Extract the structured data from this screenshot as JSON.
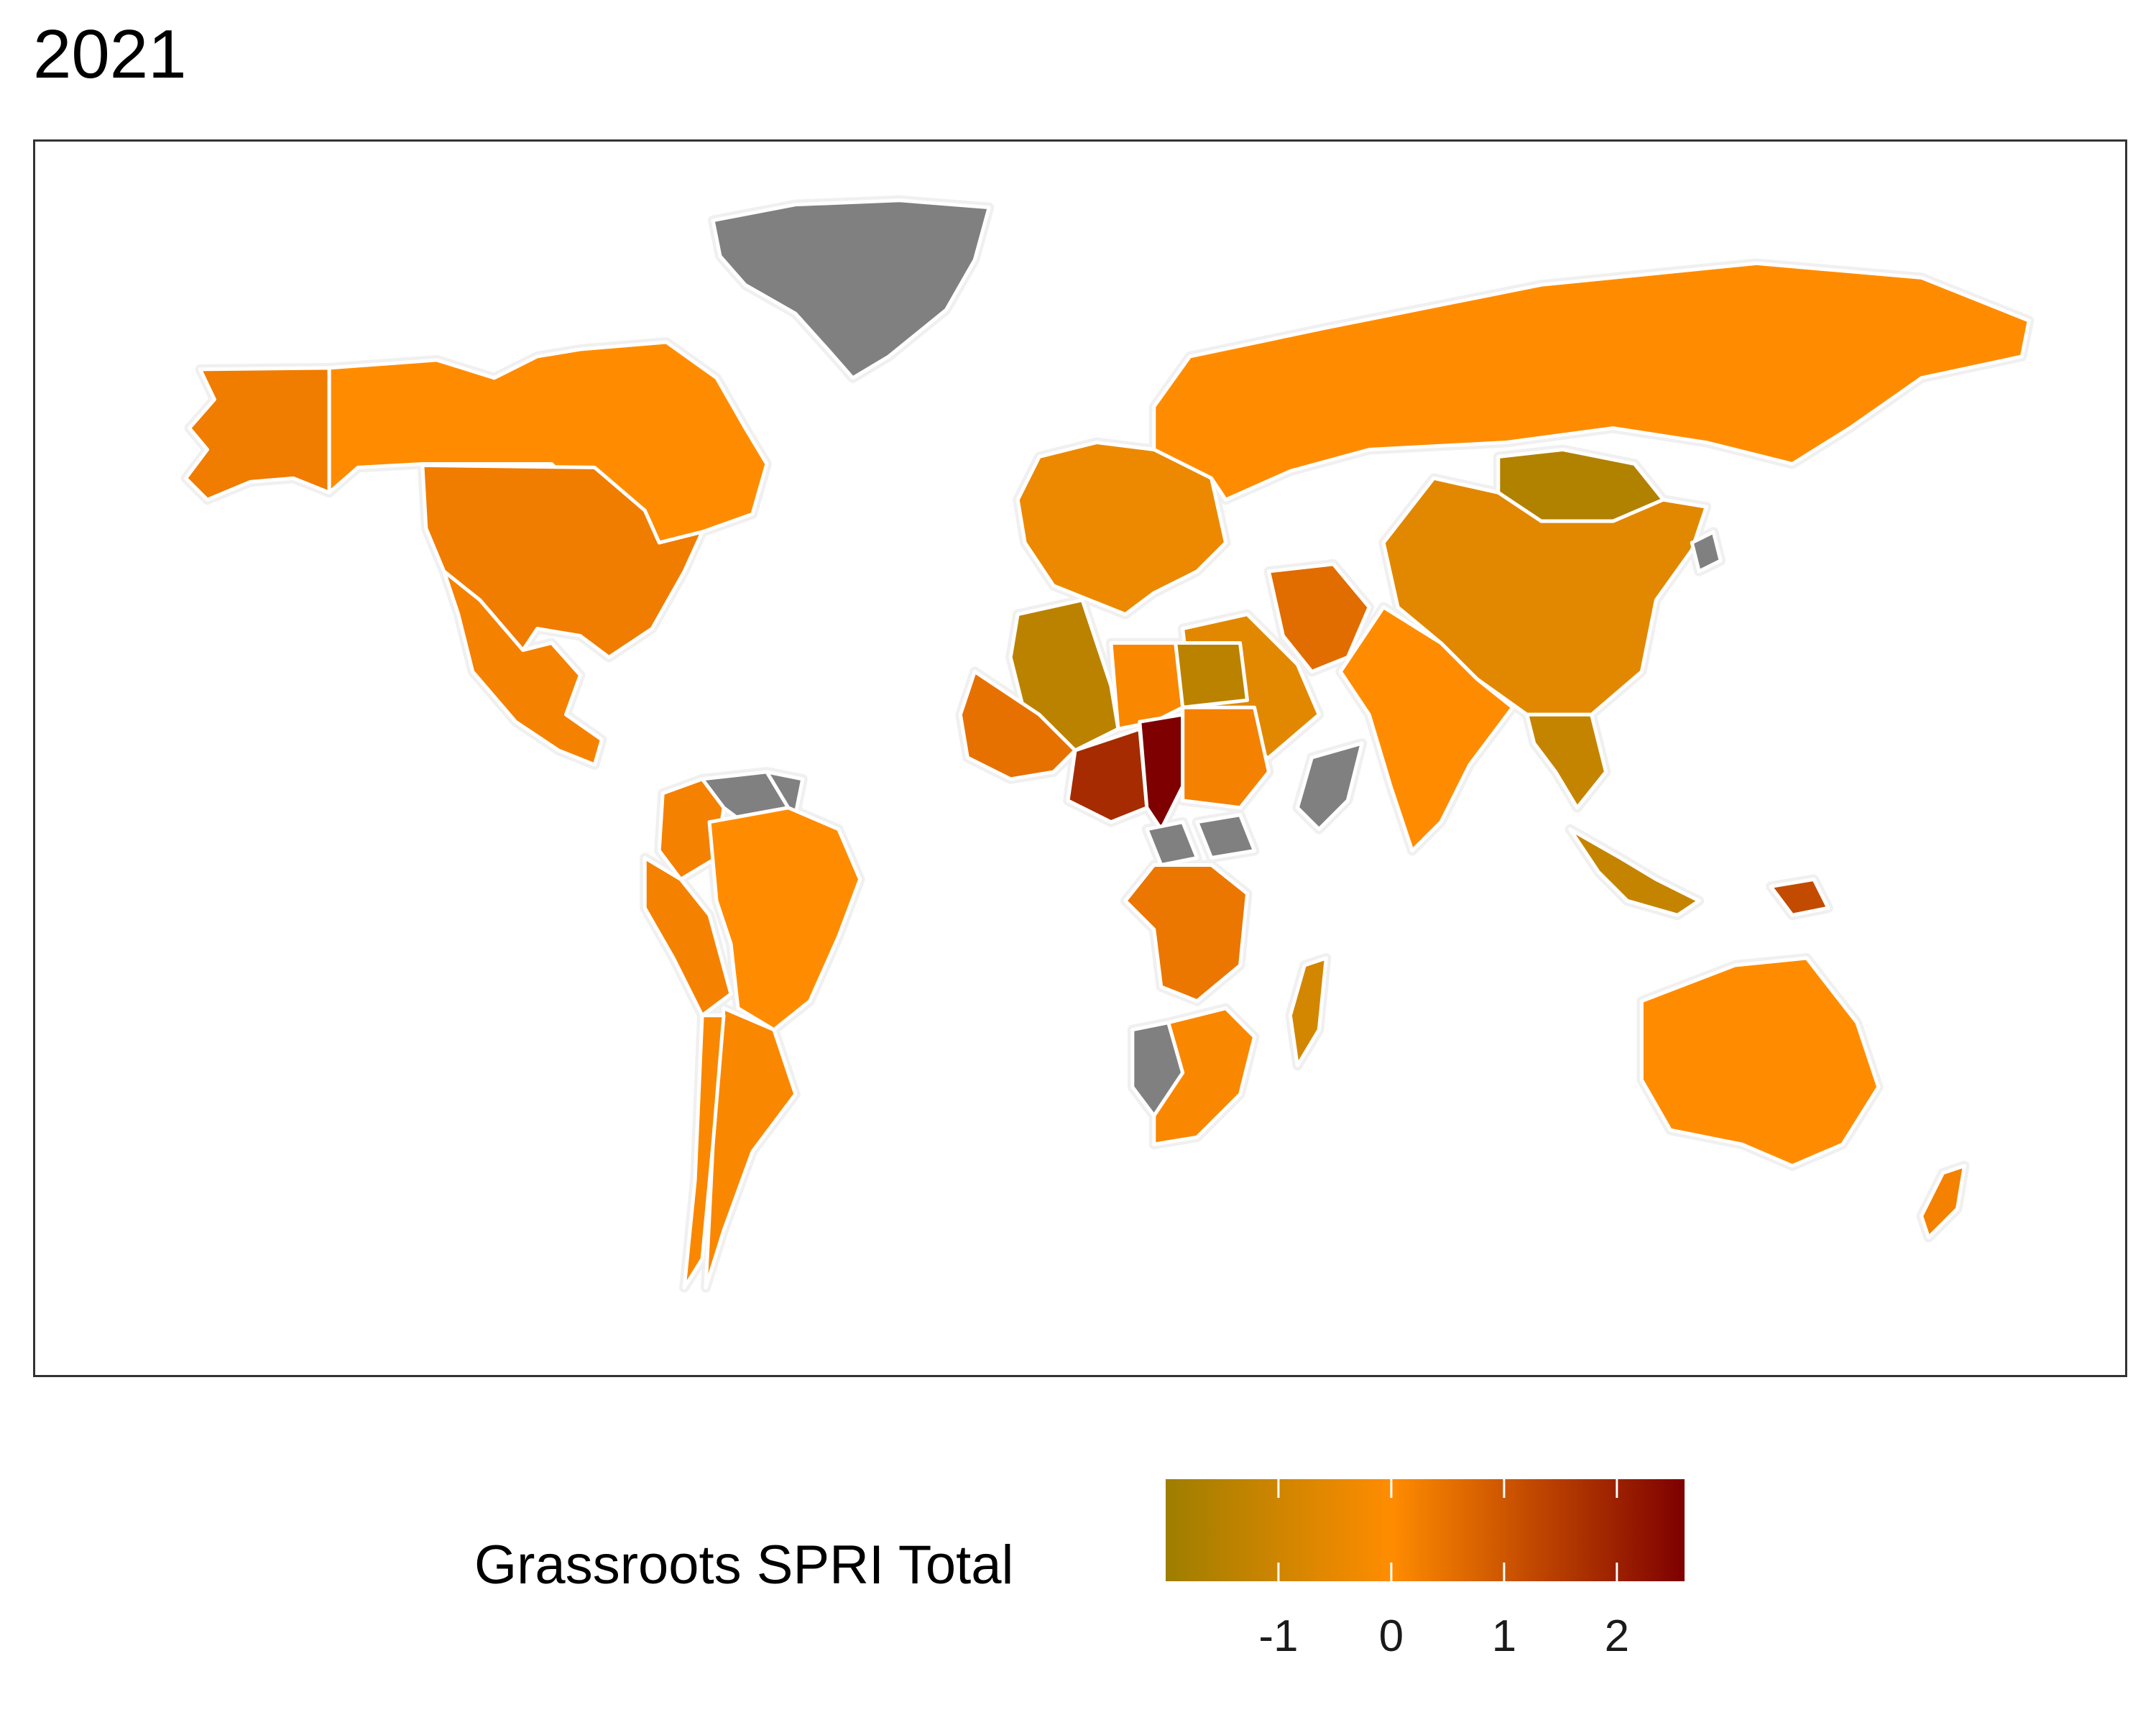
{
  "title": "2021",
  "legend": {
    "title": "Grassroots SPRI Total",
    "ticks": [
      {
        "label": "-1",
        "value": -1
      },
      {
        "label": "0",
        "value": 0
      },
      {
        "label": "1",
        "value": 1
      },
      {
        "label": "2",
        "value": 2
      }
    ],
    "range": [
      -2,
      2.6
    ],
    "colors": {
      "low": "#9E7E00",
      "mid": "#FF8C00",
      "high": "#7E0000",
      "missing": "#808080",
      "land_outline": "#F0F0F0",
      "border": "#FFFFFF"
    }
  },
  "chart_data": {
    "type": "choropleth",
    "title": "2021",
    "legend_title": "Grassroots SPRI Total",
    "scale": {
      "min": -2,
      "midpoint": 0,
      "max": 2.6,
      "legend_position": "bottom"
    },
    "regions": [
      {
        "name": "Greenland",
        "value": null
      },
      {
        "name": "Alaska",
        "value": 0.3
      },
      {
        "name": "Canada",
        "value": 0
      },
      {
        "name": "United States",
        "value": 0.3
      },
      {
        "name": "Mexico",
        "value": 0.2
      },
      {
        "name": "Venezuela",
        "value": null
      },
      {
        "name": "Guyana",
        "value": null
      },
      {
        "name": "Colombia",
        "value": 0.2
      },
      {
        "name": "Peru",
        "value": 0.2
      },
      {
        "name": "Brazil",
        "value": 0
      },
      {
        "name": "Argentina",
        "value": 0.1
      },
      {
        "name": "Chile",
        "value": 0.1
      },
      {
        "name": "Russia",
        "value": 0
      },
      {
        "name": "Mongolia",
        "value": -1.6
      },
      {
        "name": "China",
        "value": -0.6
      },
      {
        "name": "India",
        "value": 0
      },
      {
        "name": "Iran",
        "value": 0.6
      },
      {
        "name": "Saudi Arabia",
        "value": -0.6
      },
      {
        "name": "Algeria",
        "value": -1.4
      },
      {
        "name": "Libya",
        "value": 0.1
      },
      {
        "name": "Egypt",
        "value": -1.4
      },
      {
        "name": "Mali",
        "value": 0.5
      },
      {
        "name": "Niger",
        "value": 1.8
      },
      {
        "name": "Chad",
        "value": 2.6
      },
      {
        "name": "Sudan",
        "value": 0.2
      },
      {
        "name": "Somalia",
        "value": null
      },
      {
        "name": "Central African Republic",
        "value": null
      },
      {
        "name": "South Sudan",
        "value": null
      },
      {
        "name": "DR Congo",
        "value": 0.4
      },
      {
        "name": "Namibia",
        "value": null
      },
      {
        "name": "Southern Africa",
        "value": 0.1
      },
      {
        "name": "Madagascar",
        "value": -0.9
      },
      {
        "name": "Europe",
        "value": -0.4
      },
      {
        "name": "Southeast Asia",
        "value": -1.2
      },
      {
        "name": "Indonesia",
        "value": -1.2
      },
      {
        "name": "Papua New Guinea",
        "value": 1.2
      },
      {
        "name": "Australia",
        "value": 0
      },
      {
        "name": "New Zealand",
        "value": 0.2
      },
      {
        "name": "North Korea",
        "value": null
      }
    ]
  }
}
